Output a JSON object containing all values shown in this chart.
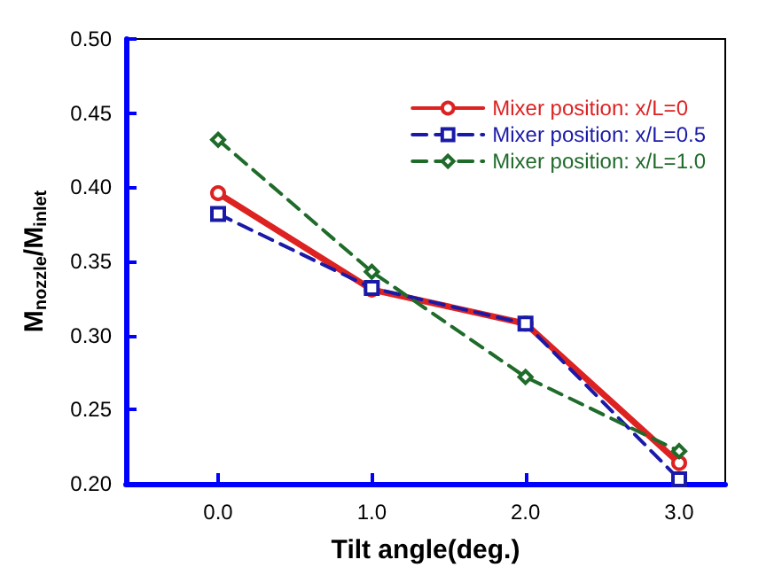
{
  "chart_data": {
    "type": "line",
    "xlabel": "Tilt angle(deg.)",
    "ylabel": "M$_{nozzle}$/M$_{inlet}$",
    "x": [
      0,
      1,
      2,
      3
    ],
    "xlim": [
      -0.6,
      3.3
    ],
    "xticks": [
      {
        "value": 0,
        "label": "0.0"
      },
      {
        "value": 1,
        "label": "1.0"
      },
      {
        "value": 2,
        "label": "2.0"
      },
      {
        "value": 3,
        "label": "3.0"
      }
    ],
    "ylim": [
      0.2,
      0.5
    ],
    "yticks": [
      {
        "value": 0.2,
        "label": "0.20"
      },
      {
        "value": 0.25,
        "label": "0.25"
      },
      {
        "value": 0.3,
        "label": "0.30"
      },
      {
        "value": 0.35,
        "label": "0.35"
      },
      {
        "value": 0.4,
        "label": "0.40"
      },
      {
        "value": 0.45,
        "label": "0.45"
      },
      {
        "value": 0.5,
        "label": "0.50"
      }
    ],
    "series": [
      {
        "name": "Mixer position: x/L=0",
        "color": "#dd2222",
        "values": [
          0.396,
          0.331,
          0.308,
          0.214
        ],
        "marker": "circle",
        "line_style": "solid"
      },
      {
        "name": "Mixer position: x/L=0.5",
        "color": "#1a1aa8",
        "values": [
          0.382,
          0.332,
          0.308,
          0.203
        ],
        "marker": "square",
        "line_style": "dashed"
      },
      {
        "name": "Mixer position: x/L=1.0",
        "color": "#1f6b2a",
        "values": [
          0.432,
          0.343,
          0.272,
          0.222
        ],
        "marker": "diamond",
        "line_style": "dashed"
      }
    ],
    "legend": "top right",
    "grid": false
  }
}
